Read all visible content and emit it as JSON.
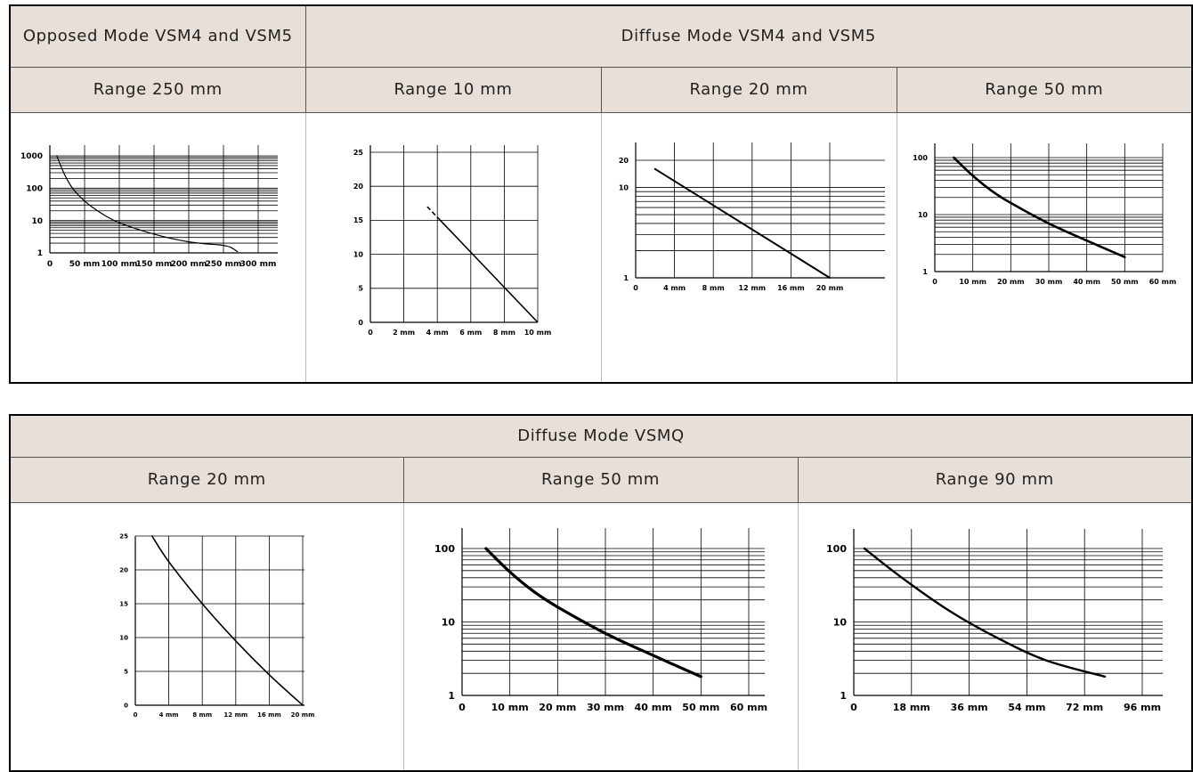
{
  "section1": {
    "group_opposed": "Opposed Mode VSM4 and VSM5",
    "group_diffuse": "Diffuse Mode VSM4 and VSM5",
    "range_labels": [
      "Range 250 mm",
      "Range 10 mm",
      "Range 20 mm",
      "Range 50 mm"
    ]
  },
  "section2": {
    "group_title": "Diffuse Mode VSMQ",
    "range_labels": [
      "Range 20 mm",
      "Range 50 mm",
      "Range 90 mm"
    ]
  },
  "colors": {
    "header_bg": "#e8e0d8",
    "grid": "#000000",
    "curve": "#000000"
  },
  "chart_data": [
    {
      "id": "opposed-250",
      "type": "line",
      "title": "Range 250 mm",
      "y_scale": "log",
      "ylim": [
        1,
        1000
      ],
      "y_ticks": [
        "1",
        "10",
        "100",
        "1000"
      ],
      "xlim": [
        0,
        300
      ],
      "x_ticks": [
        "0",
        "50 mm",
        "100 mm",
        "150 mm",
        "200 mm",
        "250 mm",
        "300 mm"
      ],
      "grid": true,
      "series": [
        {
          "x": [
            10,
            20,
            30,
            40,
            50,
            60,
            80,
            100,
            125,
            150,
            175,
            200,
            225,
            240,
            250,
            260,
            270
          ],
          "y": [
            1000,
            300,
            120,
            65,
            40,
            27,
            14,
            8.5,
            5.5,
            3.8,
            2.8,
            2.2,
            1.9,
            1.8,
            1.7,
            1.5,
            1.1
          ]
        }
      ]
    },
    {
      "id": "diffuse-10",
      "type": "line",
      "title": "Range 10 mm",
      "y_scale": "linear",
      "ylim": [
        0,
        25
      ],
      "y_ticks": [
        "0",
        "5",
        "10",
        "15",
        "20",
        "25"
      ],
      "xlim": [
        0,
        10
      ],
      "x_ticks": [
        "0",
        "2 mm",
        "4 mm",
        "6 mm",
        "8 mm",
        "10 mm"
      ],
      "grid": true,
      "series": [
        {
          "x": [
            3.4,
            10
          ],
          "y": [
            17,
            0
          ],
          "dashed_until_x": 4.1
        }
      ]
    },
    {
      "id": "diffuse-20",
      "type": "line",
      "title": "Range 20 mm",
      "y_scale": "log",
      "ylim": [
        1,
        20
      ],
      "y_ticks": [
        "1",
        "10",
        "20"
      ],
      "xlim": [
        0,
        20
      ],
      "x_ticks": [
        "0",
        "4 mm",
        "8 mm",
        "12 mm",
        "16 mm",
        "20 mm"
      ],
      "grid": true,
      "series": [
        {
          "x": [
            2,
            20
          ],
          "y": [
            16,
            1
          ]
        }
      ]
    },
    {
      "id": "diffuse-50",
      "type": "line",
      "title": "Range 50 mm",
      "y_scale": "log",
      "ylim": [
        1,
        100
      ],
      "y_ticks": [
        "1",
        "10",
        "100"
      ],
      "xlim": [
        0,
        60
      ],
      "x_ticks": [
        "0",
        "10 mm",
        "20 mm",
        "30 mm",
        "40 mm",
        "50 mm",
        "60 mm"
      ],
      "grid": true,
      "series": [
        {
          "x": [
            5,
            10,
            15,
            20,
            30,
            40,
            50
          ],
          "y": [
            100,
            48,
            26,
            16,
            7,
            3.5,
            1.8
          ]
        }
      ]
    },
    {
      "id": "vsmq-20",
      "type": "line",
      "title": "Range 20 mm",
      "y_scale": "linear",
      "ylim": [
        0,
        25
      ],
      "y_ticks": [
        "0",
        "5",
        "10",
        "15",
        "20",
        "25"
      ],
      "xlim": [
        0,
        20
      ],
      "x_ticks": [
        "0",
        "4 mm",
        "8 mm",
        "12 mm",
        "16 mm",
        "20 mm"
      ],
      "grid": true,
      "series": [
        {
          "x": [
            2,
            4,
            8,
            12,
            16,
            20
          ],
          "y": [
            25,
            21.2,
            15,
            9.5,
            4.5,
            0
          ]
        }
      ]
    },
    {
      "id": "vsmq-50",
      "type": "line",
      "title": "Range 50 mm",
      "y_scale": "log",
      "ylim": [
        1,
        100
      ],
      "y_ticks": [
        "1",
        "10",
        "100"
      ],
      "xlim": [
        0,
        60
      ],
      "x_ticks": [
        "0",
        "10 mm",
        "20 mm",
        "30 mm",
        "40 mm",
        "50 mm",
        "60 mm"
      ],
      "grid": true,
      "series": [
        {
          "x": [
            5,
            10,
            15,
            20,
            30,
            40,
            50
          ],
          "y": [
            100,
            48,
            26,
            16,
            7,
            3.5,
            1.8
          ]
        }
      ]
    },
    {
      "id": "vsmq-90",
      "type": "line",
      "title": "Range 90 mm",
      "y_scale": "log",
      "ylim": [
        1,
        100
      ],
      "y_ticks": [
        "1",
        "10",
        "100"
      ],
      "xlim": [
        0,
        108
      ],
      "x_ticks": [
        "0",
        "18 mm",
        "36 mm",
        "54 mm",
        "72 mm",
        "96 mm"
      ],
      "grid": true,
      "series": [
        {
          "x": [
            4,
            18,
            36,
            54,
            72,
            94
          ],
          "y": [
            100,
            40,
            14,
            6,
            3,
            1.8
          ]
        }
      ]
    }
  ]
}
